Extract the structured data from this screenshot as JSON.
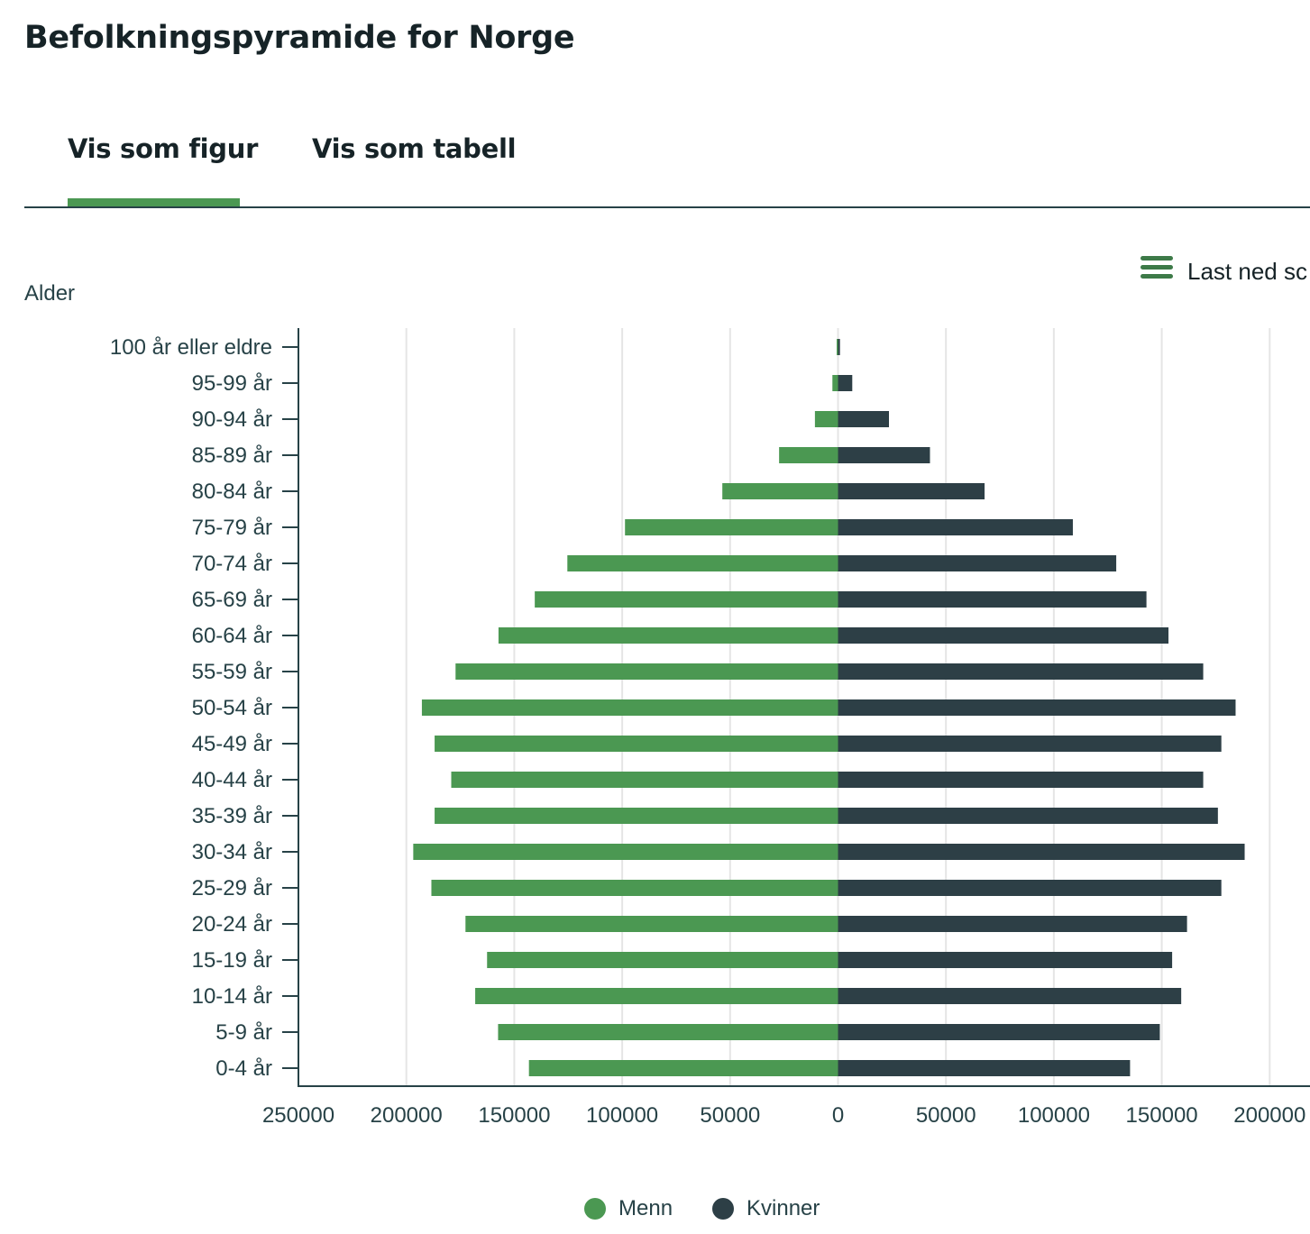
{
  "page": {
    "title": "Befolkningspyramide for Norge"
  },
  "tabs": [
    {
      "label": "Vis som figur",
      "active": true
    },
    {
      "label": "Vis som tabell",
      "active": false
    }
  ],
  "download": {
    "label": "Last ned sc",
    "icon": "menu-icon"
  },
  "colors": {
    "menn": "#4b9852",
    "kvinner": "#2d3f46",
    "grid": "#e5e5e5",
    "axis": "#274247"
  },
  "chart_data": {
    "type": "bar",
    "orientation": "horizontal",
    "title": "",
    "ylabel": "Alder",
    "xlabel": "",
    "categories": [
      "100 år eller eldre",
      "95-99 år",
      "90-94 år",
      "85-89 år",
      "80-84 år",
      "75-79 år",
      "70-74 år",
      "65-69 år",
      "60-64 år",
      "55-59 år",
      "50-54 år",
      "45-49 år",
      "40-44 år",
      "35-39 år",
      "30-34 år",
      "25-29 år",
      "20-24 år",
      "15-19 år",
      "10-14 år",
      "5-9 år",
      "0-4 år"
    ],
    "x_ticks": [
      "250000",
      "200000",
      "150000",
      "100000",
      "50000",
      "0",
      "50000",
      "100000",
      "150000",
      "200000"
    ],
    "xlim": [
      -250000,
      218000
    ],
    "grid": true,
    "legend_position": "bottom-center",
    "series": [
      {
        "name": "Menn",
        "color": "#4b9852",
        "values": [
          -200,
          -2600,
          -10700,
          -27300,
          -53600,
          -98700,
          -125400,
          -140500,
          -157300,
          -177200,
          -192800,
          -186900,
          -179200,
          -186900,
          -196800,
          -188400,
          -172600,
          -162600,
          -168100,
          -157500,
          -143200
        ]
      },
      {
        "name": "Kvinner",
        "color": "#2d3f46",
        "values": [
          900,
          6600,
          23600,
          42600,
          67900,
          108800,
          128900,
          142900,
          153100,
          169200,
          184200,
          177600,
          169200,
          176000,
          188400,
          177600,
          161700,
          154800,
          159000,
          149100,
          135300
        ]
      }
    ]
  },
  "legend": [
    {
      "label": "Menn",
      "color": "#4b9852"
    },
    {
      "label": "Kvinner",
      "color": "#2d3f46"
    }
  ]
}
